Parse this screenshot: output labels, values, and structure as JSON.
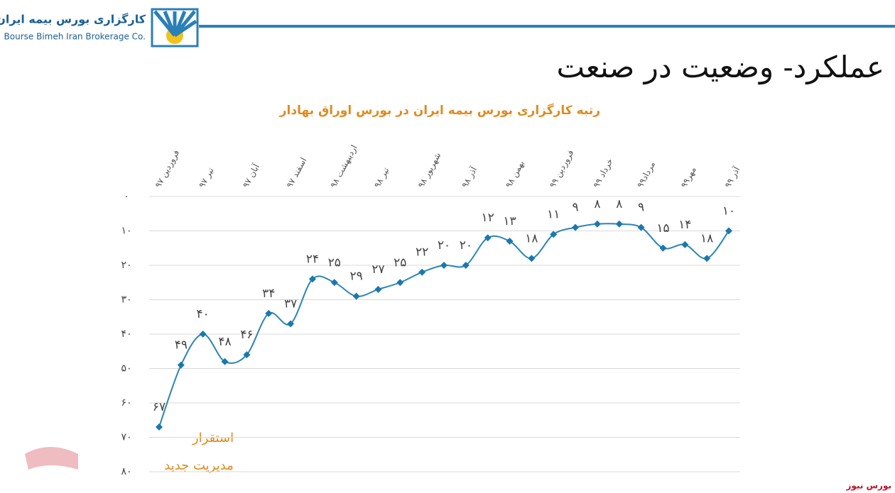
{
  "header": {
    "company_fa": "کارگزاری بورس بیمه ایران",
    "company_en": "Bourse Bimeh Iran Brokerage Co."
  },
  "slide_title": "عملکرد- وضعیت در صنعت",
  "watermark": "بورس نیوز",
  "chart_data": {
    "type": "line",
    "title": "رتبه کارگزاری بورس بیمه ایران در بورس اوراق بهادار",
    "categories": [
      "فروردین ۹۷",
      null,
      "تیر ۹۷",
      null,
      "آبان ۹۷",
      null,
      "اسفند ۹۷",
      null,
      "اردیبهشت ۹۸",
      null,
      "تیر ۹۸",
      null,
      "شهریور ۹۸",
      null,
      "آذر ۹۸",
      null,
      "بهمن ۹۸",
      null,
      "فروردین ۹۹",
      null,
      "خرداد ۹۹",
      null,
      "مرداد۹۹",
      null,
      "مهر۹۹",
      null,
      "آذر ۹۹"
    ],
    "series": [
      {
        "name": "رتبه",
        "color": "#2a86b5",
        "values": [
          67,
          49,
          40,
          48,
          46,
          34,
          37,
          24,
          25,
          29,
          27,
          25,
          22,
          20,
          20,
          12,
          13,
          18,
          11,
          9,
          8,
          8,
          9,
          15,
          14,
          18,
          10
        ],
        "value_labels": [
          "۶۷",
          "۴۹",
          "۴۰",
          "۴۸",
          "۴۶",
          "۳۴",
          "۳۷",
          "۲۴",
          "۲۵",
          "۲۹",
          "۲۷",
          "۲۵",
          "۲۲",
          "۲۰",
          "۲۰",
          "۱۲",
          "۱۳",
          "۱۸",
          "۱۱",
          "۹",
          "۸",
          "۸",
          "۹",
          "۱۵",
          "۱۴",
          "۱۸",
          "۱۰"
        ]
      }
    ],
    "ylim": [
      0,
      80
    ],
    "y_inverted": true,
    "yticks": [
      {
        "value": 0,
        "label": "۰"
      },
      {
        "value": 10,
        "label": "۱۰"
      },
      {
        "value": 20,
        "label": "۲۰"
      },
      {
        "value": 30,
        "label": "۳۰"
      },
      {
        "value": 40,
        "label": "۴۰"
      },
      {
        "value": 50,
        "label": "۵۰"
      },
      {
        "value": 60,
        "label": "۶۰"
      },
      {
        "value": 70,
        "label": "۷۰"
      },
      {
        "value": 80,
        "label": "۸۰"
      }
    ],
    "grid": true,
    "annotations": [
      "استقرار",
      "مدیریت جدید"
    ]
  }
}
